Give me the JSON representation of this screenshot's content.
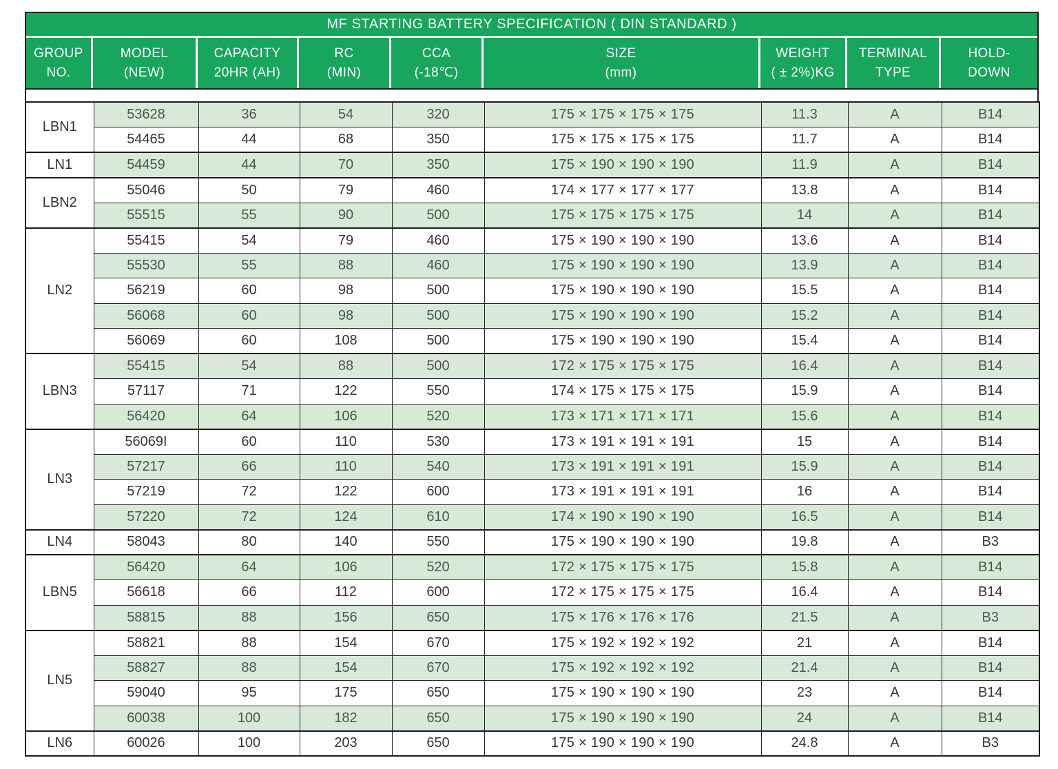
{
  "title": "MF STARTING BATTERY SPECIFICATION ( DIN STANDARD )",
  "colors": {
    "header_green": "#18a55c",
    "row_green": "#d8e9d8",
    "border_dark": "#1c1c1c",
    "text_dark": "#363636",
    "text_green_row": "#49584c",
    "header_text": "#ffffff"
  },
  "table": {
    "columns": [
      {
        "line1": "GROUP",
        "line2": "NO."
      },
      {
        "line1": "MODEL",
        "line2": "(NEW)"
      },
      {
        "line1": "CAPACITY",
        "line2": "20HR (AH)"
      },
      {
        "line1": "RC",
        "line2": "(MIN)"
      },
      {
        "line1": "CCA",
        "line2": "(-18℃)"
      },
      {
        "line1": "SIZE",
        "line2": "(mm)"
      },
      {
        "line1": "WEIGHT",
        "line2": "( ± 2%)KG"
      },
      {
        "line1": "TERMINAL",
        "line2": "TYPE"
      },
      {
        "line1": "HOLD-",
        "line2": "DOWN"
      }
    ],
    "groups": [
      {
        "group": "LBN1",
        "rows": [
          {
            "model": "53628",
            "capacity": "36",
            "rc": "54",
            "cca": "320",
            "size": "175 × 175 × 175 × 175",
            "weight": "11.3",
            "terminal": "A",
            "hold_down": "B14"
          },
          {
            "model": "54465",
            "capacity": "44",
            "rc": "68",
            "cca": "350",
            "size": "175 × 175 × 175 × 175",
            "weight": "11.7",
            "terminal": "A",
            "hold_down": "B14"
          }
        ]
      },
      {
        "group": "LN1",
        "rows": [
          {
            "model": "54459",
            "capacity": "44",
            "rc": "70",
            "cca": "350",
            "size": "175 × 190 × 190 × 190",
            "weight": "11.9",
            "terminal": "A",
            "hold_down": "B14"
          }
        ]
      },
      {
        "group": "LBN2",
        "rows": [
          {
            "model": "55046",
            "capacity": "50",
            "rc": "79",
            "cca": "460",
            "size": "174 × 177 × 177 × 177",
            "weight": "13.8",
            "terminal": "A",
            "hold_down": "B14"
          },
          {
            "model": "55515",
            "capacity": "55",
            "rc": "90",
            "cca": "500",
            "size": "175 × 175 × 175 × 175",
            "weight": "14",
            "terminal": "A",
            "hold_down": "B14"
          }
        ]
      },
      {
        "group": "LN2",
        "rows": [
          {
            "model": "55415",
            "capacity": "54",
            "rc": "79",
            "cca": "460",
            "size": "175 × 190 × 190 × 190",
            "weight": "13.6",
            "terminal": "A",
            "hold_down": "B14"
          },
          {
            "model": "55530",
            "capacity": "55",
            "rc": "88",
            "cca": "460",
            "size": "175 × 190 × 190 × 190",
            "weight": "13.9",
            "terminal": "A",
            "hold_down": "B14"
          },
          {
            "model": "56219",
            "capacity": "60",
            "rc": "98",
            "cca": "500",
            "size": "175 × 190 × 190 × 190",
            "weight": "15.5",
            "terminal": "A",
            "hold_down": "B14"
          },
          {
            "model": "56068",
            "capacity": "60",
            "rc": "98",
            "cca": "500",
            "size": "175 × 190 × 190 × 190",
            "weight": "15.2",
            "terminal": "A",
            "hold_down": "B14"
          },
          {
            "model": "56069",
            "capacity": "60",
            "rc": "108",
            "cca": "500",
            "size": "175 × 190 × 190 × 190",
            "weight": "15.4",
            "terminal": "A",
            "hold_down": "B14"
          }
        ]
      },
      {
        "group": "LBN3",
        "rows": [
          {
            "model": "55415",
            "capacity": "54",
            "rc": "88",
            "cca": "500",
            "size": "172 × 175 × 175 × 175",
            "weight": "16.4",
            "terminal": "A",
            "hold_down": "B14"
          },
          {
            "model": "57117",
            "capacity": "71",
            "rc": "122",
            "cca": "550",
            "size": "174 × 175 × 175 × 175",
            "weight": "15.9",
            "terminal": "A",
            "hold_down": "B14"
          },
          {
            "model": "56420",
            "capacity": "64",
            "rc": "106",
            "cca": "520",
            "size": "173 × 171 × 171 × 171",
            "weight": "15.6",
            "terminal": "A",
            "hold_down": "B14"
          }
        ]
      },
      {
        "group": "LN3",
        "rows": [
          {
            "model": "56069I",
            "capacity": "60",
            "rc": "110",
            "cca": "530",
            "size": "173 × 191 × 191 × 191",
            "weight": "15",
            "terminal": "A",
            "hold_down": "B14"
          },
          {
            "model": "57217",
            "capacity": "66",
            "rc": "110",
            "cca": "540",
            "size": "173 × 191 × 191 × 191",
            "weight": "15.9",
            "terminal": "A",
            "hold_down": "B14"
          },
          {
            "model": "57219",
            "capacity": "72",
            "rc": "122",
            "cca": "600",
            "size": "173 × 191 × 191 × 191",
            "weight": "16",
            "terminal": "A",
            "hold_down": "B14"
          },
          {
            "model": "57220",
            "capacity": "72",
            "rc": "124",
            "cca": "610",
            "size": "174 × 190 × 190 × 190",
            "weight": "16.5",
            "terminal": "A",
            "hold_down": "B14"
          }
        ]
      },
      {
        "group": "LN4",
        "rows": [
          {
            "model": "58043",
            "capacity": "80",
            "rc": "140",
            "cca": "550",
            "size": "175 × 190 × 190 × 190",
            "weight": "19.8",
            "terminal": "A",
            "hold_down": "B3"
          }
        ]
      },
      {
        "group": "LBN5",
        "rows": [
          {
            "model": "56420",
            "capacity": "64",
            "rc": "106",
            "cca": "520",
            "size": "172 × 175 × 175 × 175",
            "weight": "15.8",
            "terminal": "A",
            "hold_down": "B14"
          },
          {
            "model": "56618",
            "capacity": "66",
            "rc": "112",
            "cca": "600",
            "size": "172 × 175 × 175 × 175",
            "weight": "16.4",
            "terminal": "A",
            "hold_down": "B14"
          },
          {
            "model": "58815",
            "capacity": "88",
            "rc": "156",
            "cca": "650",
            "size": "175 × 176 × 176 × 176",
            "weight": "21.5",
            "terminal": "A",
            "hold_down": "B3"
          }
        ]
      },
      {
        "group": "LN5",
        "rows": [
          {
            "model": "58821",
            "capacity": "88",
            "rc": "154",
            "cca": "670",
            "size": "175 × 192 × 192 × 192",
            "weight": "21",
            "terminal": "A",
            "hold_down": "B14"
          },
          {
            "model": "58827",
            "capacity": "88",
            "rc": "154",
            "cca": "670",
            "size": "175 × 192 × 192 × 192",
            "weight": "21.4",
            "terminal": "A",
            "hold_down": "B14"
          },
          {
            "model": "59040",
            "capacity": "95",
            "rc": "175",
            "cca": "650",
            "size": "175 × 190 × 190 × 190",
            "weight": "23",
            "terminal": "A",
            "hold_down": "B14"
          },
          {
            "model": "60038",
            "capacity": "100",
            "rc": "182",
            "cca": "650",
            "size": "175 × 190 × 190 × 190",
            "weight": "24",
            "terminal": "A",
            "hold_down": "B14"
          }
        ]
      },
      {
        "group": "LN6",
        "rows": [
          {
            "model": "60026",
            "capacity": "100",
            "rc": "203",
            "cca": "650",
            "size": "175 × 190 × 190 × 190",
            "weight": "24.8",
            "terminal": "A",
            "hold_down": "B3"
          }
        ]
      }
    ]
  }
}
